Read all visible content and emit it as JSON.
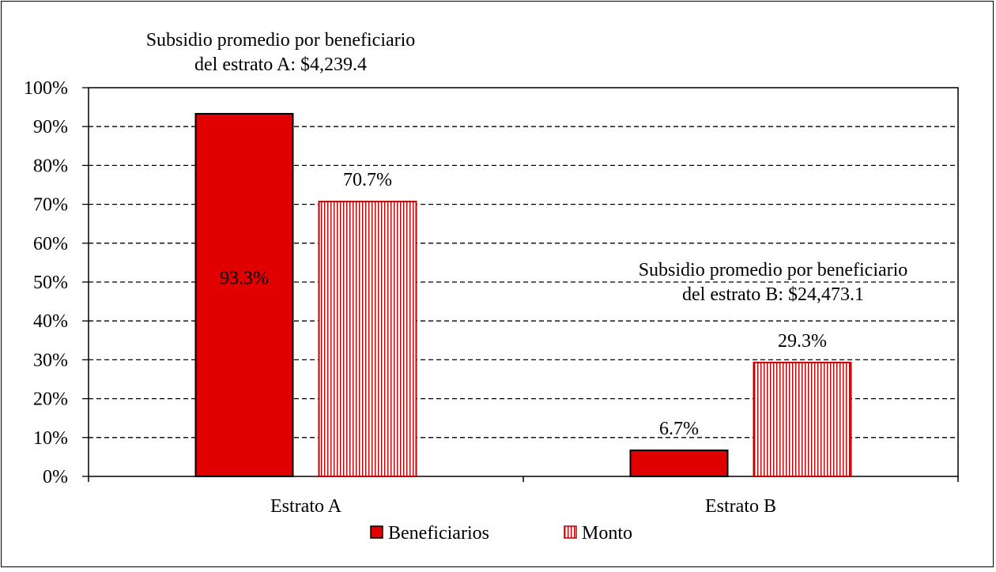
{
  "chart_data": {
    "type": "bar",
    "title": "",
    "xlabel": "",
    "ylabel": "",
    "ylim": [
      0,
      100
    ],
    "y_ticks": [
      "0%",
      "10%",
      "20%",
      "30%",
      "40%",
      "50%",
      "60%",
      "70%",
      "80%",
      "90%",
      "100%"
    ],
    "grid": true,
    "legend_position": "bottom",
    "categories": [
      "Estrato A",
      "Estrato B"
    ],
    "series": [
      {
        "name": "Beneficiarios",
        "values": [
          93.3,
          6.7
        ],
        "labels": [
          "93.3%",
          "6.7%"
        ],
        "color": "#e00000",
        "pattern": "solid"
      },
      {
        "name": "Monto",
        "values": [
          70.7,
          29.3
        ],
        "labels": [
          "70.7%",
          "29.3%"
        ],
        "color": "#c00000",
        "pattern": "vertical-stripes"
      }
    ],
    "annotations": [
      {
        "category": "Estrato A",
        "lines": [
          "Subsidio promedio por beneficiario",
          "del estrato A: $4,239.4"
        ]
      },
      {
        "category": "Estrato B",
        "lines": [
          "Subsidio promedio por beneficiario",
          "del estrato B: $24,473.1"
        ]
      }
    ]
  }
}
